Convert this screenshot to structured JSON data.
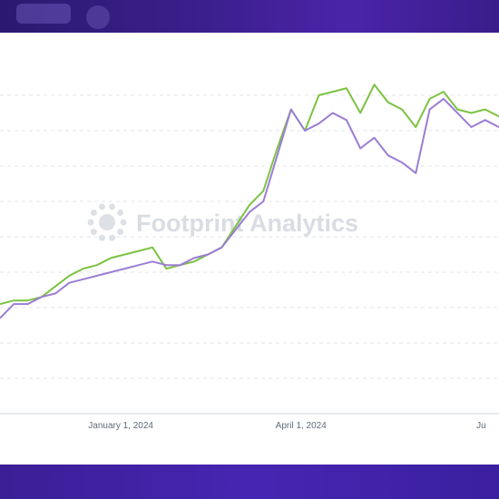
{
  "colors": {
    "series_green": "#7cc242",
    "series_purple": "#9b7dd4",
    "grid": "#e3e6ea",
    "axis": "#cfd4da",
    "watermark": "#d9dde3"
  },
  "watermark": {
    "text": "Footprint Analytics",
    "icon": "sun-logo-icon"
  },
  "chart_data": {
    "type": "line",
    "x_type": "date",
    "x_tick_labels": [
      "January 1, 2024",
      "April 1, 2024",
      "Ju"
    ],
    "x_ticks": [
      "2024-01-01",
      "2024-04-01",
      "2024-07-01"
    ],
    "x_range": [
      "2023-11-01",
      "2024-07-10"
    ],
    "y_range": [
      0,
      100
    ],
    "y_ticks": [
      10,
      20,
      30,
      40,
      50,
      60,
      70,
      80,
      90
    ],
    "y_tick_labels_visible": false,
    "grid": true,
    "legend": "none",
    "x": [
      "2023-11-01",
      "2023-11-08",
      "2023-11-15",
      "2023-11-22",
      "2023-11-29",
      "2023-12-06",
      "2023-12-13",
      "2023-12-20",
      "2023-12-27",
      "2024-01-03",
      "2024-01-10",
      "2024-01-17",
      "2024-01-24",
      "2024-01-31",
      "2024-02-07",
      "2024-02-14",
      "2024-02-21",
      "2024-02-28",
      "2024-03-06",
      "2024-03-13",
      "2024-03-20",
      "2024-03-27",
      "2024-04-03",
      "2024-04-10",
      "2024-04-17",
      "2024-04-24",
      "2024-05-01",
      "2024-05-08",
      "2024-05-15",
      "2024-05-22",
      "2024-05-29",
      "2024-06-05",
      "2024-06-12",
      "2024-06-19",
      "2024-06-26",
      "2024-07-03",
      "2024-07-10"
    ],
    "series": [
      {
        "color": "#7cc242",
        "values": [
          31,
          32,
          32,
          33,
          36,
          39,
          41,
          42,
          44,
          45,
          46,
          47,
          41,
          42,
          43,
          45,
          47,
          53,
          59,
          63,
          75,
          86,
          80,
          90,
          91,
          92,
          85,
          93,
          88,
          86,
          81,
          89,
          91,
          86,
          85,
          86,
          84
        ]
      },
      {
        "color": "#9b7dd4",
        "values": [
          27,
          31,
          31,
          33,
          34,
          37,
          38,
          39,
          40,
          41,
          42,
          43,
          42,
          42,
          44,
          45,
          47,
          52,
          57,
          60,
          73,
          86,
          80,
          82,
          85,
          83,
          75,
          78,
          73,
          71,
          68,
          86,
          89,
          85,
          81,
          83,
          81
        ]
      }
    ]
  }
}
